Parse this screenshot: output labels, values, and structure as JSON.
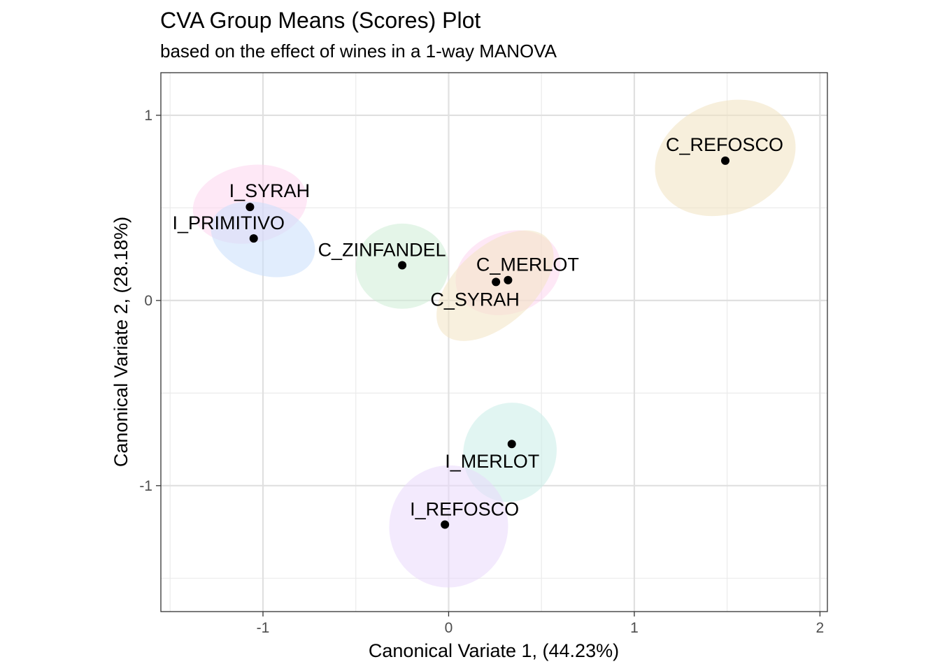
{
  "chart_data": {
    "type": "scatter",
    "title": "CVA Group Means (Scores) Plot",
    "subtitle": "based on the effect of wines in a 1-way MANOVA",
    "xlabel": "Canonical Variate 1, (44.23%)",
    "ylabel": "Canonical Variate 2, (28.18%)",
    "xlim": [
      -1.55,
      2.04
    ],
    "ylim": [
      -1.68,
      1.23
    ],
    "x_ticks": [
      -1,
      0,
      1,
      2
    ],
    "x_tick_labels": [
      "-1",
      "0",
      "1",
      "2"
    ],
    "y_ticks": [
      -1,
      0,
      1
    ],
    "y_tick_labels": [
      "-1",
      "0",
      "1"
    ],
    "grid": true,
    "points": [
      {
        "label": "C_REFOSCO",
        "x": 1.49,
        "y": 0.755,
        "color": "#f0e2c0",
        "ellipse": {
          "cx": 1.49,
          "cy": 0.77,
          "rx": 0.39,
          "ry": 0.3,
          "angle": -22
        }
      },
      {
        "label": "I_SYRAH",
        "x": -1.07,
        "y": 0.505,
        "color": "#fdd6ee",
        "ellipse": {
          "cx": -1.07,
          "cy": 0.52,
          "rx": 0.31,
          "ry": 0.21,
          "angle": -10
        }
      },
      {
        "label": "I_PRIMITIVO",
        "x": -1.05,
        "y": 0.335,
        "color": "#c8defc",
        "ellipse": {
          "cx": -1.0,
          "cy": 0.33,
          "rx": 0.29,
          "ry": 0.19,
          "angle": 20
        }
      },
      {
        "label": "C_ZINFANDEL",
        "x": -0.25,
        "y": 0.19,
        "color": "#cdecd6",
        "ellipse": {
          "cx": -0.25,
          "cy": 0.185,
          "rx": 0.25,
          "ry": 0.23,
          "angle": 0
        }
      },
      {
        "label": "C_MERLOT",
        "x": 0.32,
        "y": 0.11,
        "color": "#fdd6ee",
        "ellipse": {
          "cx": 0.32,
          "cy": 0.15,
          "rx": 0.29,
          "ry": 0.22,
          "angle": -20
        }
      },
      {
        "label": "C_SYRAH",
        "x": 0.255,
        "y": 0.1,
        "color": "#f2e4c2",
        "ellipse": {
          "cx": 0.25,
          "cy": 0.08,
          "rx": 0.38,
          "ry": 0.21,
          "angle": -42
        }
      },
      {
        "label": "I_MERLOT",
        "x": 0.34,
        "y": -0.775,
        "color": "#c8ece8",
        "ellipse": {
          "cx": 0.33,
          "cy": -0.82,
          "rx": 0.25,
          "ry": 0.27,
          "angle": 18
        }
      },
      {
        "label": "I_REFOSCO",
        "x": -0.02,
        "y": -1.21,
        "color": "#ead8fc",
        "ellipse": {
          "cx": 0.0,
          "cy": -1.22,
          "rx": 0.32,
          "ry": 0.33,
          "angle": 10
        }
      }
    ]
  }
}
